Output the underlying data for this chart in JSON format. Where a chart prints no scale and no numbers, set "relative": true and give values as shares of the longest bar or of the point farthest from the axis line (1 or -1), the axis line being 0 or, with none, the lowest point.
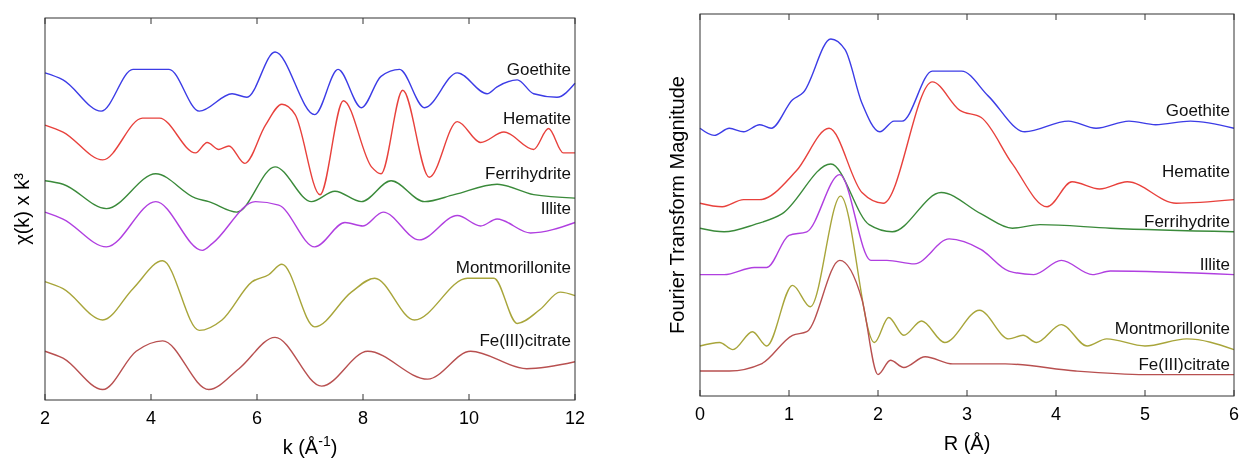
{
  "chart_data": [
    {
      "type": "line",
      "relative": true,
      "xlabel": "k (Å$^{-1}$)",
      "ylabel": "χ(k) x k³",
      "xlim": [
        2,
        12
      ],
      "xticks": [
        2,
        4,
        6,
        8,
        10,
        12
      ],
      "grid": false,
      "series": [
        {
          "name": "Goethite",
          "color": "#3c3ce6",
          "x": [
            2,
            2.34,
            3.06,
            3.66,
            4.34,
            4.91,
            5.53,
            5.81,
            6.34,
            7.09,
            7.53,
            7.97,
            8.34,
            8.69,
            9.16,
            9.78,
            10.34,
            10.53,
            10.91,
            11.22,
            11.66,
            12
          ],
          "values": [
            0.94,
            0.92,
            0.83,
            0.95,
            0.95,
            0.83,
            0.88,
            0.87,
            1.0,
            0.82,
            0.95,
            0.84,
            0.93,
            0.95,
            0.84,
            0.94,
            0.88,
            0.9,
            0.92,
            0.88,
            0.87,
            0.91
          ]
        },
        {
          "name": "Hematite",
          "color": "#e8413c",
          "x": [
            2,
            2.34,
            3.09,
            3.84,
            4.16,
            4.84,
            5.06,
            5.28,
            5.47,
            5.77,
            6.16,
            6.47,
            6.72,
            7.19,
            7.63,
            8.16,
            8.34,
            8.75,
            9.25,
            9.78,
            10.22,
            10.66,
            11.22,
            11.5,
            11.78,
            12
          ],
          "values": [
            0.79,
            0.77,
            0.69,
            0.81,
            0.81,
            0.71,
            0.74,
            0.72,
            0.73,
            0.68,
            0.79,
            0.85,
            0.82,
            0.59,
            0.86,
            0.67,
            0.65,
            0.89,
            0.64,
            0.8,
            0.74,
            0.77,
            0.72,
            0.78,
            0.71,
            0.71
          ]
        },
        {
          "name": "Ferrihydrite",
          "color": "#3a8a3a",
          "x": [
            2,
            2.34,
            3.16,
            4.09,
            4.84,
            5.09,
            5.62,
            6.34,
            7.03,
            7.47,
            7.97,
            8.53,
            9.16,
            9.72,
            10.53,
            11.22,
            12
          ],
          "values": [
            0.63,
            0.62,
            0.55,
            0.65,
            0.58,
            0.57,
            0.54,
            0.67,
            0.57,
            0.6,
            0.57,
            0.63,
            0.57,
            0.59,
            0.62,
            0.59,
            0.58
          ]
        },
        {
          "name": "Illite",
          "color": "#b03fe0",
          "x": [
            2,
            2.34,
            3.16,
            4.09,
            4.97,
            5.16,
            5.97,
            6.41,
            7.09,
            7.66,
            8.0,
            8.38,
            9.06,
            9.78,
            10.22,
            10.53,
            11.16,
            12
          ],
          "values": [
            0.54,
            0.52,
            0.44,
            0.57,
            0.43,
            0.45,
            0.57,
            0.56,
            0.44,
            0.51,
            0.5,
            0.54,
            0.46,
            0.53,
            0.5,
            0.52,
            0.48,
            0.51
          ]
        },
        {
          "name": "Montmorillonite",
          "color": "#a8a53a",
          "x": [
            2,
            2.34,
            3.09,
            3.66,
            4.22,
            4.91,
            5.34,
            5.91,
            6.22,
            6.47,
            7.09,
            7.78,
            8.22,
            8.97,
            9.97,
            10.47,
            10.91,
            11.34,
            11.72,
            12
          ],
          "values": [
            0.34,
            0.32,
            0.23,
            0.32,
            0.4,
            0.2,
            0.23,
            0.34,
            0.36,
            0.39,
            0.21,
            0.31,
            0.35,
            0.23,
            0.35,
            0.35,
            0.22,
            0.26,
            0.31,
            0.3
          ]
        },
        {
          "name": "Fe(III)citrate",
          "color": "#b85050",
          "x": [
            2,
            2.34,
            3.09,
            3.72,
            4.22,
            5.09,
            5.66,
            6.34,
            7.22,
            8.09,
            9.22,
            10.03,
            11.09,
            12
          ],
          "values": [
            0.14,
            0.12,
            0.03,
            0.14,
            0.17,
            0.03,
            0.09,
            0.18,
            0.04,
            0.14,
            0.06,
            0.14,
            0.09,
            0.11
          ]
        }
      ]
    },
    {
      "type": "line",
      "relative": true,
      "xlabel": "R (Å)",
      "ylabel": "Fourier Transform Magnitude",
      "xlim": [
        0,
        6
      ],
      "xticks": [
        0,
        1,
        2,
        3,
        4,
        5,
        6
      ],
      "grid": false,
      "series": [
        {
          "name": "Goethite",
          "color": "#3c3ce6",
          "x": [
            0,
            0.16,
            0.33,
            0.49,
            0.67,
            0.8,
            1.04,
            1.16,
            1.47,
            1.63,
            1.82,
            2.02,
            2.18,
            2.27,
            2.61,
            2.76,
            2.94,
            3.24,
            3.65,
            4.14,
            4.45,
            4.82,
            5.12,
            5.51,
            6
          ],
          "values": [
            0.75,
            0.73,
            0.75,
            0.74,
            0.76,
            0.75,
            0.83,
            0.85,
            1.0,
            0.97,
            0.82,
            0.74,
            0.77,
            0.77,
            0.91,
            0.91,
            0.91,
            0.84,
            0.74,
            0.77,
            0.75,
            0.77,
            0.76,
            0.77,
            0.75
          ]
        },
        {
          "name": "Hematite",
          "color": "#e8413c",
          "x": [
            0,
            0.25,
            0.49,
            0.67,
            1.08,
            1.45,
            1.82,
            2.06,
            2.61,
            2.92,
            3.16,
            3.51,
            3.9,
            4.18,
            4.49,
            4.8,
            5.35,
            6
          ],
          "values": [
            0.54,
            0.53,
            0.55,
            0.55,
            0.63,
            0.75,
            0.57,
            0.54,
            0.88,
            0.8,
            0.78,
            0.65,
            0.53,
            0.6,
            0.58,
            0.6,
            0.54,
            0.55
          ]
        },
        {
          "name": "Ferrihydrite",
          "color": "#3a8a3a",
          "x": [
            0,
            0.27,
            0.61,
            0.92,
            1.47,
            1.9,
            2.16,
            2.71,
            3.16,
            3.51,
            3.82,
            4.61,
            6
          ],
          "values": [
            0.47,
            0.46,
            0.48,
            0.51,
            0.65,
            0.48,
            0.46,
            0.57,
            0.51,
            0.47,
            0.48,
            0.47,
            0.46
          ]
        },
        {
          "name": "Illite",
          "color": "#b03fe0",
          "x": [
            0,
            0.27,
            0.61,
            0.75,
            1.0,
            1.2,
            1.57,
            1.92,
            2.1,
            2.41,
            2.8,
            3.16,
            3.47,
            3.75,
            4.06,
            4.41,
            4.61,
            6
          ],
          "values": [
            0.34,
            0.34,
            0.36,
            0.36,
            0.45,
            0.46,
            0.62,
            0.38,
            0.38,
            0.37,
            0.44,
            0.41,
            0.35,
            0.34,
            0.38,
            0.34,
            0.35,
            0.34
          ]
        },
        {
          "name": "Montmorillonite",
          "color": "#a8a53a",
          "x": [
            0,
            0.22,
            0.37,
            0.59,
            0.75,
            1.04,
            1.24,
            1.58,
            1.96,
            2.12,
            2.29,
            2.49,
            2.75,
            3.14,
            3.47,
            3.63,
            3.78,
            4.06,
            4.35,
            4.57,
            5.0,
            5.47,
            6
          ],
          "values": [
            0.14,
            0.15,
            0.13,
            0.18,
            0.14,
            0.31,
            0.25,
            0.56,
            0.15,
            0.22,
            0.17,
            0.21,
            0.15,
            0.24,
            0.16,
            0.17,
            0.15,
            0.2,
            0.14,
            0.16,
            0.14,
            0.16,
            0.13
          ]
        },
        {
          "name": "Fe(III)citrate",
          "color": "#b85050",
          "x": [
            0,
            0.33,
            0.69,
            1.04,
            1.2,
            1.57,
            1.82,
            2.0,
            2.14,
            2.29,
            2.53,
            2.84,
            3.43,
            4.22,
            5.0,
            6
          ],
          "values": [
            0.07,
            0.07,
            0.09,
            0.17,
            0.18,
            0.38,
            0.27,
            0.06,
            0.1,
            0.08,
            0.11,
            0.09,
            0.09,
            0.07,
            0.06,
            0.06
          ]
        }
      ]
    }
  ]
}
